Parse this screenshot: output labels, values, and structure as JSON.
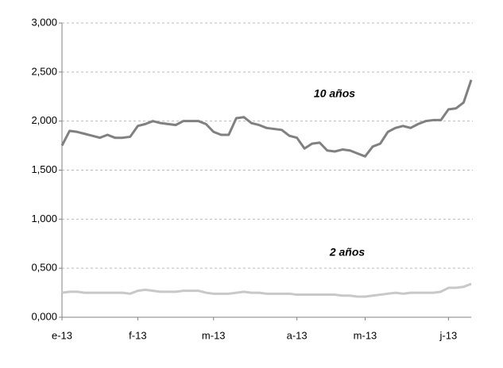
{
  "chart_data": {
    "type": "line",
    "categories": [
      "e-13",
      null,
      null,
      null,
      null,
      null,
      null,
      null,
      null,
      null,
      "f-13",
      null,
      null,
      null,
      null,
      null,
      null,
      null,
      null,
      null,
      "m-13",
      null,
      null,
      null,
      null,
      null,
      null,
      null,
      null,
      null,
      null,
      "a-13",
      null,
      null,
      null,
      null,
      null,
      null,
      null,
      null,
      "m-13",
      null,
      null,
      null,
      null,
      null,
      null,
      null,
      null,
      null,
      null,
      "j-13",
      null,
      null,
      null
    ],
    "series": [
      {
        "name": "10 años",
        "color": "#808080",
        "values": [
          1.75,
          1.9,
          1.89,
          1.87,
          1.85,
          1.83,
          1.86,
          1.83,
          1.83,
          1.84,
          1.95,
          1.97,
          2.0,
          1.98,
          1.97,
          1.96,
          2.0,
          2.0,
          2.0,
          1.97,
          1.89,
          1.86,
          1.86,
          2.03,
          2.04,
          1.98,
          1.96,
          1.93,
          1.92,
          1.91,
          1.85,
          1.83,
          1.72,
          1.77,
          1.78,
          1.7,
          1.69,
          1.71,
          1.7,
          1.67,
          1.64,
          1.74,
          1.77,
          1.89,
          1.93,
          1.95,
          1.93,
          1.97,
          2.0,
          2.01,
          2.01,
          2.12,
          2.13,
          2.19,
          2.42
        ]
      },
      {
        "name": "2 años",
        "color": "#c8c8c8",
        "values": [
          0.25,
          0.26,
          0.26,
          0.25,
          0.25,
          0.25,
          0.25,
          0.25,
          0.25,
          0.24,
          0.27,
          0.28,
          0.27,
          0.26,
          0.26,
          0.26,
          0.27,
          0.27,
          0.27,
          0.25,
          0.24,
          0.24,
          0.24,
          0.25,
          0.26,
          0.25,
          0.25,
          0.24,
          0.24,
          0.24,
          0.24,
          0.23,
          0.23,
          0.23,
          0.23,
          0.23,
          0.23,
          0.22,
          0.22,
          0.21,
          0.21,
          0.22,
          0.23,
          0.24,
          0.25,
          0.24,
          0.25,
          0.25,
          0.25,
          0.25,
          0.26,
          0.3,
          0.3,
          0.31,
          0.34
        ]
      }
    ],
    "ylim": [
      0,
      3
    ],
    "yticks": [
      {
        "value": 0,
        "label": "0,000"
      },
      {
        "value": 0.5,
        "label": "0,500"
      },
      {
        "value": 1,
        "label": "1,000"
      },
      {
        "value": 1.5,
        "label": "1,500"
      },
      {
        "value": 2,
        "label": "2,000"
      },
      {
        "value": 2.5,
        "label": "2,500"
      },
      {
        "value": 3,
        "label": "3,000"
      }
    ],
    "grid": true
  }
}
